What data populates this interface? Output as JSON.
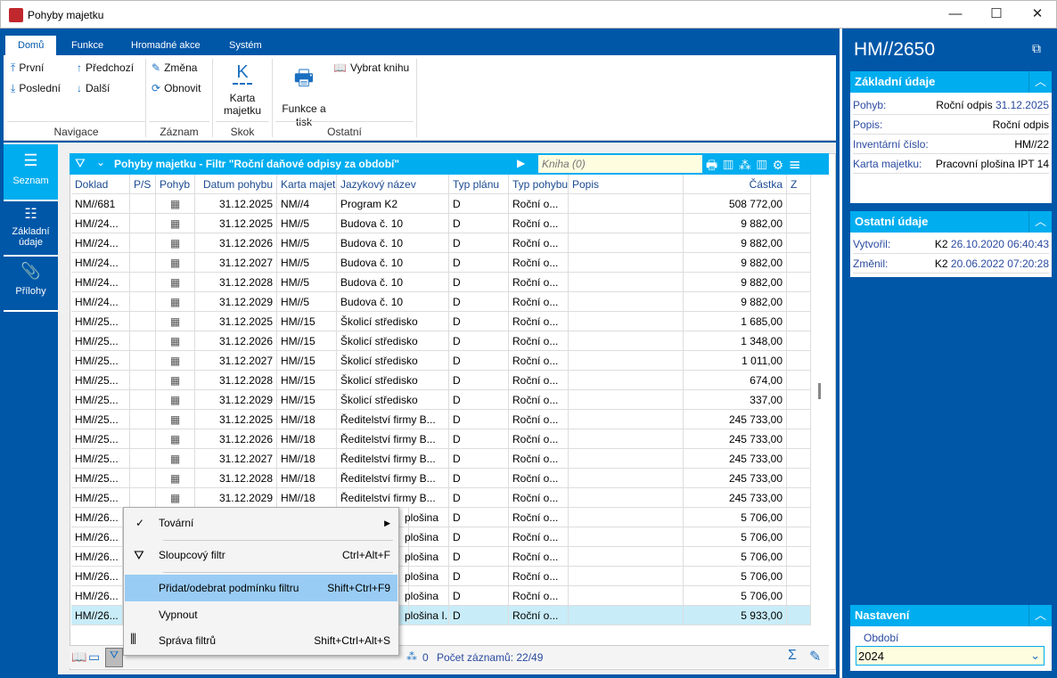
{
  "window": {
    "title": "Pohyby majetku",
    "minimize": "—",
    "maximize": "☐",
    "close": "✕"
  },
  "ribbon": {
    "tabs": [
      "Domů",
      "Funkce",
      "Hromadné akce",
      "Systém"
    ],
    "buttons": {
      "first": "První",
      "last": "Poslední",
      "prev": "Předchozí",
      "next": "Další",
      "edit": "Změna",
      "refresh": "Obnovit",
      "card": "Karta majetku",
      "print": "Funkce a tisk",
      "book": "Vybrat knihu"
    },
    "groups": [
      "Navigace",
      "Záznam",
      "Skok",
      "Ostatní"
    ]
  },
  "sidenav": [
    {
      "label": "Seznam",
      "icon": "list-icon"
    },
    {
      "label": "Základní údaje",
      "icon": "details-icon"
    },
    {
      "label": "Přílohy",
      "icon": "paperclip-icon"
    }
  ],
  "grid": {
    "title": "Pohyby majetku - Filtr \"Roční daňové odpisy za období\"",
    "search_placeholder": "Kniha (0)",
    "columns": [
      "Doklad",
      "P/S",
      "Pohyb",
      "Datum pohybu",
      "Karta majetk",
      "Jazykový název",
      "Typ plánu",
      "Typ pohybu",
      "Popis",
      "Částka",
      "Z"
    ],
    "rows": [
      [
        "NM//681",
        "31.12.2025",
        "NM//4",
        "Program K2",
        "D",
        "Roční o...",
        "508 772,00"
      ],
      [
        "HM//24...",
        "31.12.2025",
        "HM//5",
        "Budova č. 10",
        "D",
        "Roční o...",
        "9 882,00"
      ],
      [
        "HM//24...",
        "31.12.2026",
        "HM//5",
        "Budova č. 10",
        "D",
        "Roční o...",
        "9 882,00"
      ],
      [
        "HM//24...",
        "31.12.2027",
        "HM//5",
        "Budova č. 10",
        "D",
        "Roční o...",
        "9 882,00"
      ],
      [
        "HM//24...",
        "31.12.2028",
        "HM//5",
        "Budova č. 10",
        "D",
        "Roční o...",
        "9 882,00"
      ],
      [
        "HM//24...",
        "31.12.2029",
        "HM//5",
        "Budova č. 10",
        "D",
        "Roční o...",
        "9 882,00"
      ],
      [
        "HM//25...",
        "31.12.2025",
        "HM//15",
        "Školicí středisko",
        "D",
        "Roční o...",
        "1 685,00"
      ],
      [
        "HM//25...",
        "31.12.2026",
        "HM//15",
        "Školicí středisko",
        "D",
        "Roční o...",
        "1 348,00"
      ],
      [
        "HM//25...",
        "31.12.2027",
        "HM//15",
        "Školicí středisko",
        "D",
        "Roční o...",
        "1 011,00"
      ],
      [
        "HM//25...",
        "31.12.2028",
        "HM//15",
        "Školicí středisko",
        "D",
        "Roční o...",
        "674,00"
      ],
      [
        "HM//25...",
        "31.12.2029",
        "HM//15",
        "Školicí středisko",
        "D",
        "Roční o...",
        "337,00"
      ],
      [
        "HM//25...",
        "31.12.2025",
        "HM//18",
        "Ředitelství firmy B...",
        "D",
        "Roční o...",
        "245 733,00"
      ],
      [
        "HM//25...",
        "31.12.2026",
        "HM//18",
        "Ředitelství firmy B...",
        "D",
        "Roční o...",
        "245 733,00"
      ],
      [
        "HM//25...",
        "31.12.2027",
        "HM//18",
        "Ředitelství firmy B...",
        "D",
        "Roční o...",
        "245 733,00"
      ],
      [
        "HM//25...",
        "31.12.2028",
        "HM//18",
        "Ředitelství firmy B...",
        "D",
        "Roční o...",
        "245 733,00"
      ],
      [
        "HM//25...",
        "31.12.2029",
        "HM//18",
        "Ředitelství firmy B...",
        "D",
        "Roční o...",
        "245 733,00"
      ],
      [
        "HM//26...",
        "",
        "",
        "plošina",
        "D",
        "Roční o...",
        "5 706,00"
      ],
      [
        "HM//26...",
        "",
        "",
        "plošina",
        "D",
        "Roční o...",
        "5 706,00"
      ],
      [
        "HM//26...",
        "",
        "",
        "plošina",
        "D",
        "Roční o...",
        "5 706,00"
      ],
      [
        "HM//26...",
        "",
        "",
        "plošina",
        "D",
        "Roční o...",
        "5 706,00"
      ],
      [
        "HM//26...",
        "",
        "",
        "plošina",
        "D",
        "Roční o...",
        "5 706,00"
      ],
      [
        "HM//26...",
        "",
        "",
        "plošina I...",
        "D",
        "Roční o...",
        "5 933,00"
      ]
    ],
    "selected_row": 21,
    "status": "Počet záznamů: 22/49",
    "status_count": "0"
  },
  "context_menu": [
    {
      "label": "Tovární",
      "shortcut": "",
      "checked": true,
      "submenu": true
    },
    {
      "label": "Sloupcový filtr",
      "shortcut": "Ctrl+Alt+F"
    },
    {
      "label": "Přidat/odebrat podmínku filtru",
      "shortcut": "Shift+Ctrl+F9",
      "highlighted": true
    },
    {
      "label": "Vypnout",
      "shortcut": ""
    },
    {
      "label": "Správa filtrů",
      "shortcut": "Shift+Ctrl+Alt+S"
    }
  ],
  "right": {
    "title": "HM//2650",
    "basic": {
      "title": "Základní údaje",
      "rows": [
        {
          "k": "Pohyb:",
          "v": "Roční odpis",
          "v2": "31.12.2025"
        },
        {
          "k": "Popis:",
          "v": "Roční odpis",
          "v2": ""
        },
        {
          "k": "Inventární číslo:",
          "v": "HM//22",
          "v2": ""
        },
        {
          "k": "Karta majetku:",
          "v": "Pracovní plošina IPT 14",
          "v2": ""
        }
      ]
    },
    "other": {
      "title": "Ostatní údaje",
      "rows": [
        {
          "k": "Vytvořil:",
          "v": "K2",
          "v2": "26.10.2020 06:40:43"
        },
        {
          "k": "Změnil:",
          "v": "K2",
          "v2": "20.06.2022 07:20:28"
        }
      ]
    },
    "settings": {
      "title": "Nastavení",
      "label": "Období",
      "value": "2024"
    }
  },
  "colors": {
    "brand": "#0057a8",
    "accent": "#00adef",
    "selected": "#c8ecf8",
    "highlight": "#99ccf4"
  }
}
